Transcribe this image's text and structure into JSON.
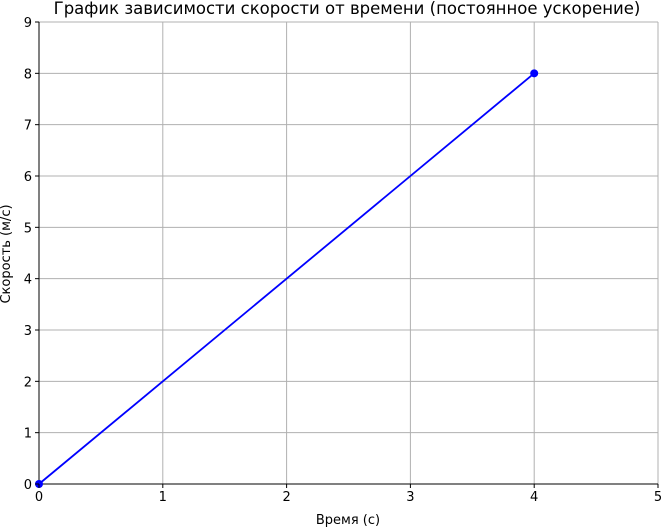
{
  "chart_data": {
    "type": "line",
    "title": "График зависимости скорости от времени (постоянное ускорение)",
    "xlabel": "Время (с)",
    "ylabel": "Скорость (м/с)",
    "xlim": [
      0,
      5
    ],
    "ylim": [
      0,
      9
    ],
    "xticks": [
      0,
      1,
      2,
      3,
      4,
      5
    ],
    "yticks": [
      0,
      1,
      2,
      3,
      4,
      5,
      6,
      7,
      8,
      9
    ],
    "grid": true,
    "series": [
      {
        "x": [
          0,
          4
        ],
        "y": [
          0,
          8
        ],
        "color": "#0000ff",
        "markers": true
      }
    ]
  }
}
